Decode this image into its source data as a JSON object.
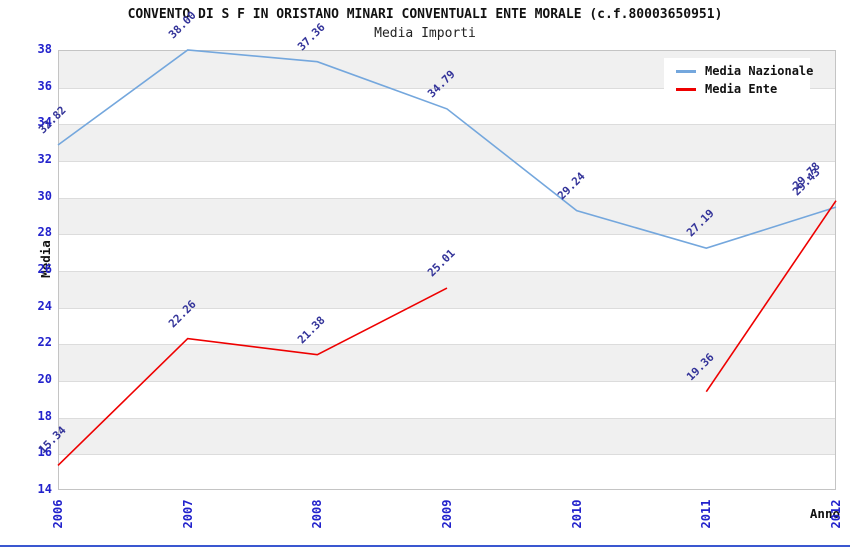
{
  "chart_data": {
    "type": "line",
    "title": "CONVENTO DI S F IN ORISTANO MINARI CONVENTUALI ENTE MORALE (c.f.80003650951)",
    "subtitle": "Media Importi",
    "xlabel": "Anno",
    "ylabel": "Media",
    "x": [
      2006,
      2007,
      2008,
      2009,
      2010,
      2011,
      2012
    ],
    "ylim": [
      14,
      38
    ],
    "ytick_step": 2,
    "grid": "horizontal-bands",
    "legend_position": "top-right",
    "series": [
      {
        "name": "Media Nazionale",
        "color": "#74a7dd",
        "values": [
          32.82,
          38.0,
          37.36,
          34.79,
          29.24,
          27.19,
          29.43
        ]
      },
      {
        "name": "Media Ente",
        "color": "#ee0000",
        "values": [
          15.34,
          22.26,
          21.38,
          25.01,
          null,
          19.36,
          29.78
        ]
      }
    ]
  },
  "colors": {
    "tick_label": "#2222cc",
    "point_label": "#333399",
    "band_gray": "#f0f0f0",
    "gridline": "#dcdcdc",
    "plot_border": "#c4c4c4",
    "bottom_rule": "#3a57d0",
    "title_text": "#111111"
  }
}
